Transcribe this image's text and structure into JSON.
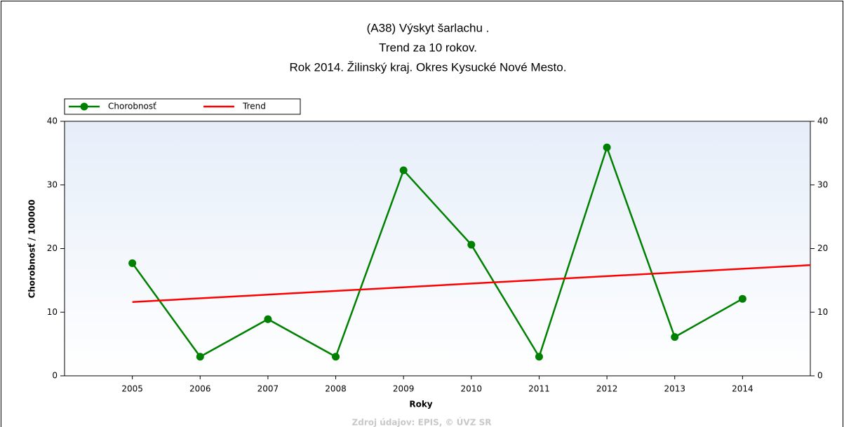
{
  "chart_data": {
    "type": "line",
    "title": [
      "(A38) Výskyt šarlachu .",
      "Trend za 10 rokov.",
      "Rok 2014. Žilinský kraj. Okres Kysucké Nové Mesto."
    ],
    "x": [
      2005,
      2006,
      2007,
      2008,
      2009,
      2010,
      2011,
      2012,
      2013,
      2014
    ],
    "xlim": [
      2004,
      2015
    ],
    "xticks": [
      2005,
      2006,
      2007,
      2008,
      2009,
      2010,
      2011,
      2012,
      2013,
      2014
    ],
    "ylim": [
      0,
      40
    ],
    "yticks": [
      0,
      10,
      20,
      30,
      40
    ],
    "x_label": "Roky",
    "y_label": "Chorobnosť / 100000",
    "series": [
      {
        "name": "Chorobnosť",
        "color": "#008000",
        "values": [
          17.7,
          3.0,
          8.9,
          3.0,
          32.3,
          20.6,
          3.0,
          35.9,
          6.1,
          12.1
        ]
      },
      {
        "name": "Trend",
        "color": "#ff0000",
        "x": [
          2005,
          2015
        ],
        "values": [
          11.6,
          17.4
        ]
      }
    ],
    "legend": "top-left",
    "source": "Zdroj údajov: EPIS, © ÚVZ SR"
  }
}
